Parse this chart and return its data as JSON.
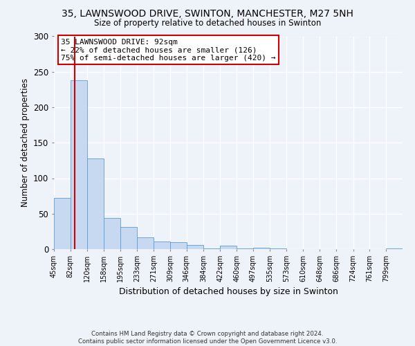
{
  "title": "35, LAWNSWOOD DRIVE, SWINTON, MANCHESTER, M27 5NH",
  "subtitle": "Size of property relative to detached houses in Swinton",
  "xlabel": "Distribution of detached houses by size in Swinton",
  "ylabel": "Number of detached properties",
  "bin_labels": [
    "45sqm",
    "82sqm",
    "120sqm",
    "158sqm",
    "195sqm",
    "233sqm",
    "271sqm",
    "309sqm",
    "346sqm",
    "384sqm",
    "422sqm",
    "460sqm",
    "497sqm",
    "535sqm",
    "573sqm",
    "610sqm",
    "648sqm",
    "686sqm",
    "724sqm",
    "761sqm",
    "799sqm"
  ],
  "bin_edges": [
    45,
    82,
    120,
    158,
    195,
    233,
    271,
    309,
    346,
    384,
    422,
    460,
    497,
    535,
    573,
    610,
    648,
    686,
    724,
    761,
    799
  ],
  "bar_heights": [
    72,
    238,
    128,
    44,
    31,
    17,
    11,
    10,
    6,
    1,
    5,
    1,
    2,
    1,
    0,
    0,
    0,
    0,
    0,
    0,
    1
  ],
  "bar_color": "#c6d9f0",
  "bar_edgecolor": "#5b9bd5",
  "property_size": 92,
  "property_line_color": "#cc0000",
  "ylim": [
    0,
    300
  ],
  "yticks": [
    0,
    50,
    100,
    150,
    200,
    250,
    300
  ],
  "annotation_text": "35 LAWNSWOOD DRIVE: 92sqm\n← 22% of detached houses are smaller (126)\n75% of semi-detached houses are larger (420) →",
  "annotation_box_color": "#ffffff",
  "annotation_box_edgecolor": "#cc0000",
  "footer_text": "Contains HM Land Registry data © Crown copyright and database right 2024.\nContains public sector information licensed under the Open Government Licence v3.0.",
  "background_color": "#eef2f9",
  "grid_color": "#ffffff"
}
